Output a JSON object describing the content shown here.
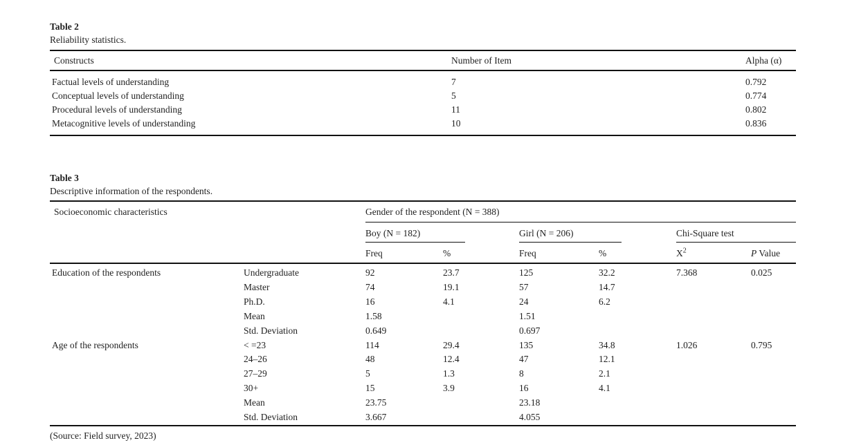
{
  "colors": {
    "background": "#ffffff",
    "text": "#1f1f1f",
    "rule": "#111111"
  },
  "table2": {
    "label": "Table 2",
    "caption": "Reliability statistics.",
    "columns": [
      "Constructs",
      "Number of Item",
      "Alpha (α)"
    ],
    "rows": [
      [
        "Factual levels of understanding",
        "7",
        "0.792"
      ],
      [
        "Conceptual levels of understanding",
        "5",
        "0.774"
      ],
      [
        "Procedural levels of understanding",
        "11",
        "0.802"
      ],
      [
        "Metacognitive levels of understanding",
        "10",
        "0.836"
      ]
    ]
  },
  "table3": {
    "label": "Table 3",
    "caption": "Descriptive information of the respondents.",
    "stub_header": "Socioeconomic characteristics",
    "gender_header": "Gender of the respondent (N = 388)",
    "boy": {
      "header": "Boy (N = 182)",
      "freq_label": "Freq",
      "pct_label": "%"
    },
    "girl": {
      "header": "Girl (N = 206)",
      "freq_label": "Freq",
      "pct_label": "%"
    },
    "chi": {
      "header": "Chi-Square test",
      "x2_base": "X",
      "x2_sup": "2",
      "p_italic": "P",
      "p_rest": " Value"
    },
    "rows": [
      [
        "Education of the respondents",
        "Undergraduate",
        "92",
        "23.7",
        "125",
        "32.2",
        "7.368",
        "0.025"
      ],
      [
        "",
        "Master",
        "74",
        "19.1",
        "57",
        "14.7",
        "",
        ""
      ],
      [
        "",
        "Ph.D.",
        "16",
        "4.1",
        "24",
        "6.2",
        "",
        ""
      ],
      [
        "",
        "Mean",
        "1.58",
        "",
        "1.51",
        "",
        "",
        ""
      ],
      [
        "",
        "Std. Deviation",
        "0.649",
        "",
        "0.697",
        "",
        "",
        ""
      ],
      [
        "Age of the respondents",
        "< =23",
        "114",
        "29.4",
        "135",
        "34.8",
        "1.026",
        "0.795"
      ],
      [
        "",
        "24–26",
        "48",
        "12.4",
        "47",
        "12.1",
        "",
        ""
      ],
      [
        "",
        "27–29",
        "5",
        "1.3",
        "8",
        "2.1",
        "",
        ""
      ],
      [
        "",
        "30+",
        "15",
        "3.9",
        "16",
        "4.1",
        "",
        ""
      ],
      [
        "",
        "Mean",
        "23.75",
        "",
        "23.18",
        "",
        "",
        ""
      ],
      [
        "",
        "Std. Deviation",
        "3.667",
        "",
        "4.055",
        "",
        "",
        ""
      ]
    ],
    "source_note": "(Source: Field survey, 2023)"
  }
}
